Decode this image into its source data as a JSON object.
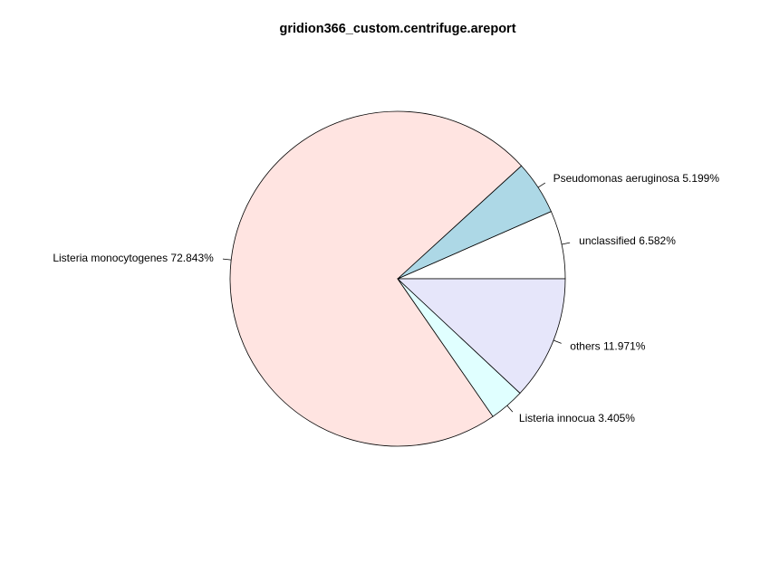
{
  "chart_data": {
    "type": "pie",
    "title": "gridion366_custom.centrifuge.areport",
    "start_angle": "0 (counter-clockwise from 3 o'clock)",
    "direction": "counter-clockwise",
    "slices": [
      {
        "label": "unclassified 6.582%",
        "value": 6.582,
        "color": "#ffffff"
      },
      {
        "label": "Pseudomonas aeruginosa 5.199%",
        "value": 5.199,
        "color": "#add8e6"
      },
      {
        "label": "Listeria monocytogenes 72.843%",
        "value": 72.843,
        "color": "#ffe4e1"
      },
      {
        "label": "Listeria innocua 3.405%",
        "value": 3.405,
        "color": "#e0ffff"
      },
      {
        "label": "others 11.971%",
        "value": 11.971,
        "color": "#e6e6fa"
      }
    ]
  }
}
